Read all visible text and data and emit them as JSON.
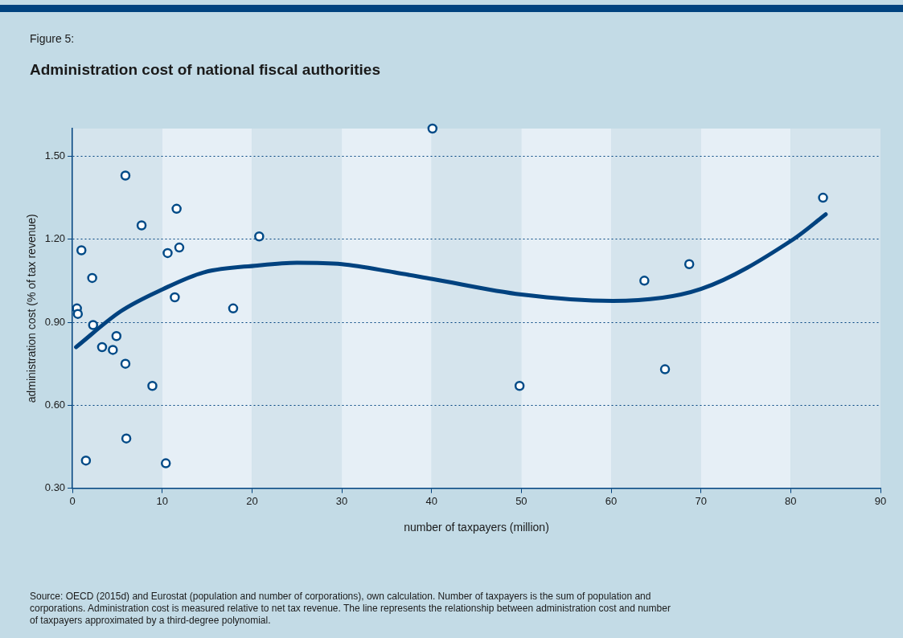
{
  "chart_data": {
    "type": "scatter",
    "subtitle": "Figure 5:",
    "title": "Administration cost of national fiscal authorities",
    "xlabel": "number of taxpayers (million)",
    "ylabel": "administration cost (% of tax revenue)",
    "xlim": [
      0,
      90
    ],
    "xticks": [
      0,
      10,
      20,
      30,
      40,
      50,
      60,
      70,
      80,
      90
    ],
    "ylim": [
      0.3,
      1.6
    ],
    "yticks": [
      {
        "value": 0.3,
        "label": "0.30"
      },
      {
        "value": 0.6,
        "label": "0.60"
      },
      {
        "value": 0.9,
        "label": "0.90"
      },
      {
        "value": 1.2,
        "label": "1.20"
      },
      {
        "value": 1.5,
        "label": "1.50"
      }
    ],
    "grid": "y",
    "legend": false,
    "marker": "circle",
    "series": [
      {
        "color": "#004a87",
        "x": [
          0.5,
          0.6,
          1.0,
          1.5,
          2.2,
          2.3,
          3.3,
          4.5,
          4.9,
          5.9,
          5.9,
          6.0,
          7.7,
          8.9,
          10.4,
          10.6,
          11.4,
          11.6,
          11.9,
          17.9,
          20.8,
          40.1,
          49.8,
          63.7,
          66.0,
          68.7,
          83.6
        ],
        "values": [
          0.95,
          0.93,
          1.16,
          0.4,
          1.06,
          0.89,
          0.81,
          0.8,
          0.85,
          1.43,
          0.75,
          0.48,
          1.25,
          0.67,
          0.39,
          1.15,
          0.99,
          1.31,
          1.17,
          0.95,
          1.21,
          1.6,
          0.67,
          1.05,
          0.73,
          1.11,
          1.35
        ]
      },
      {
        "type": "line",
        "color": "#00427f",
        "marker": "none",
        "x": [
          0.4,
          5.4,
          10.1,
          14.6,
          20.6,
          25,
          30,
          35.9,
          40.1,
          50,
          60.2,
          70,
          80.3,
          83.9
        ],
        "values": [
          0.81,
          0.94,
          1.02,
          1.08,
          1.105,
          1.115,
          1.11,
          1.08,
          1.056,
          1.0,
          0.977,
          1.02,
          1.2,
          1.29
        ]
      }
    ],
    "annotations": [
      "Source: OECD (2015d) and Eurostat (population and number of corporations), own calculation. Number of taxpayers is the sum of population and corporations. Administration cost is measured relative to net tax revenue. The line represents the relationship between administration cost and number of taxpayers approximated by a third-degree polynomial."
    ]
  }
}
